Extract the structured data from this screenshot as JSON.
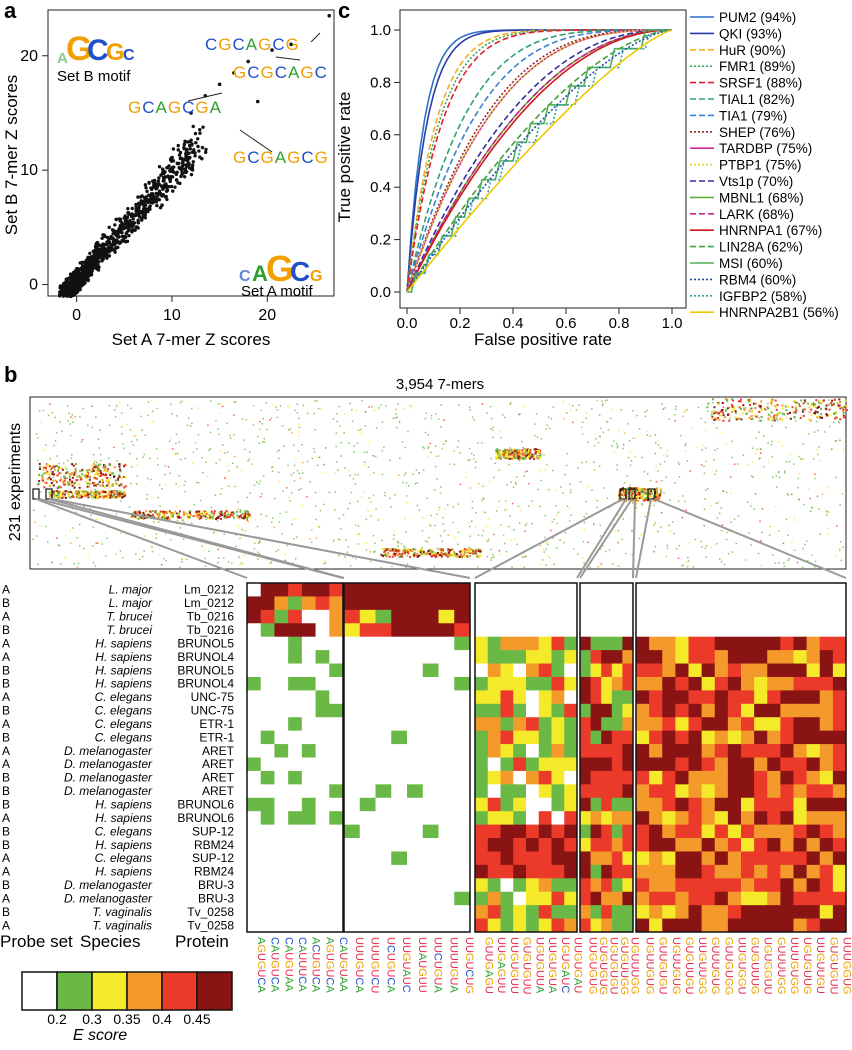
{
  "panels": {
    "a": "a",
    "b": "b",
    "c": "c"
  },
  "colors": {
    "A": "#2ca02c",
    "C": "#2050c8",
    "G": "#f0a000",
    "U": "#e8294a",
    "escore": [
      "#ffffff",
      "#6ab846",
      "#f4ea2a",
      "#f49a2a",
      "#ec3a2a",
      "#8a1414"
    ]
  },
  "panel_a": {
    "xlabel": "Set A 7-mer Z scores",
    "ylabel": "Set B 7-mer Z scores",
    "xticks": [
      "0",
      "10",
      "20"
    ],
    "yticks": [
      "0",
      "10",
      "20"
    ],
    "kmer_labels": [
      "CGCAGCG",
      "GCGCAGC",
      "GCAGCGA",
      "GCGAGCG"
    ],
    "motif_labels": [
      "Set B motif",
      "Set A motif"
    ],
    "logo_icons": [
      "set-b-motif-logo",
      "set-a-motif-logo"
    ]
  },
  "panel_b": {
    "top_title": "3,954 7-mers",
    "ylabel": "231 experiments",
    "col_headers": [
      "Probe set",
      "Species",
      "Protein"
    ],
    "rows": [
      [
        "A",
        "L. major",
        "Lm_0212"
      ],
      [
        "B",
        "L. major",
        "Lm_0212"
      ],
      [
        "A",
        "T. brucei",
        "Tb_0216"
      ],
      [
        "B",
        "T. brucei",
        "Tb_0216"
      ],
      [
        "A",
        "H. sapiens",
        "BRUNOL5"
      ],
      [
        "A",
        "H. sapiens",
        "BRUNOL4"
      ],
      [
        "B",
        "H. sapiens",
        "BRUNOL5"
      ],
      [
        "B",
        "H. sapiens",
        "BRUNOL4"
      ],
      [
        "A",
        "C. elegans",
        "UNC-75"
      ],
      [
        "B",
        "C. elegans",
        "UNC-75"
      ],
      [
        "A",
        "C. elegans",
        "ETR-1"
      ],
      [
        "B",
        "C. elegans",
        "ETR-1"
      ],
      [
        "A",
        "D. melanogaster",
        "ARET"
      ],
      [
        "A",
        "D. melanogaster",
        "ARET"
      ],
      [
        "B",
        "D. melanogaster",
        "ARET"
      ],
      [
        "B",
        "D. melanogaster",
        "ARET"
      ],
      [
        "B",
        "H. sapiens",
        "BRUNOL6"
      ],
      [
        "A",
        "H. sapiens",
        "BRUNOL6"
      ],
      [
        "B",
        "C. elegans",
        "SUP-12"
      ],
      [
        "B",
        "H. sapiens",
        "RBM24"
      ],
      [
        "A",
        "C. elegans",
        "SUP-12"
      ],
      [
        "A",
        "H. sapiens",
        "RBM24"
      ],
      [
        "B",
        "D. melanogaster",
        "BRU-3"
      ],
      [
        "A",
        "D. melanogaster",
        "BRU-3"
      ],
      [
        "B",
        "T. vaginalis",
        "Tv_0258"
      ],
      [
        "A",
        "T. vaginalis",
        "Tv_0258"
      ]
    ],
    "legend_ticks": [
      "0.2",
      "0.3",
      "0.35",
      "0.4",
      "0.45"
    ],
    "legend_title": "E score",
    "kmers": [
      [
        "AGUGUCA",
        "CAUGUCA",
        "CAUGUAA",
        "CAUUUCA",
        "ACUGUCA",
        "AGUGUCA",
        "CAUGUAA"
      ],
      [
        "UUUGUCA",
        "UUUGUCU",
        "UCUGUCA",
        "UUGUAUC",
        "UUAUGUU",
        "UUCUGUA",
        "UUUUGUA",
        "UUGUCUG"
      ],
      [
        "GUUGAGU",
        "UUGAGUU",
        "UUGUGUU",
        "GUGUGUU",
        "UGUGUUA",
        "UUGUGUA",
        "UGUGAUC",
        "UUGUGAU"
      ],
      [
        "UUGUGUG",
        "GUGUGUG",
        "UGUGUGU",
        "GUGUUGG",
        "UGUUUGG"
      ],
      [
        "UGUUGUG",
        "GUUGUGU",
        "UGUUGUG",
        "GUGUUGU",
        "UUGUUGG",
        "GUUUGUG",
        "GUUGUGG",
        "UUGUGGU",
        "GUGUUUG",
        "UGUGGUU",
        "GUUUUGG",
        "UUUGUGG",
        "UGUGUUG",
        "UUGUUGU",
        "GUGUGUU",
        "UUUGGUG"
      ]
    ]
  },
  "chart_data": {
    "type": "line",
    "title": "",
    "xlabel": "False positive rate",
    "ylabel": "True positive rate",
    "xlim": [
      0,
      1
    ],
    "ylim": [
      0,
      1
    ],
    "xticks": [
      "0.0",
      "0.2",
      "0.4",
      "0.6",
      "0.8",
      "1.0"
    ],
    "yticks": [
      "0.0",
      "0.2",
      "0.4",
      "0.6",
      "0.8",
      "1.0"
    ],
    "legend_position": "right",
    "series": [
      {
        "name": "PUM2 (94%)",
        "color": "#2a72c8",
        "dash": "solid",
        "auc": 0.94
      },
      {
        "name": "QKI (93%)",
        "color": "#2a3ca8",
        "dash": "solid",
        "auc": 0.93
      },
      {
        "name": "HuR (90%)",
        "color": "#f0b020",
        "dash": "dash",
        "auc": 0.9
      },
      {
        "name": "FMR1 (89%)",
        "color": "#3aa850",
        "dash": "dot",
        "auc": 0.89
      },
      {
        "name": "SRSF1 (88%)",
        "color": "#e02030",
        "dash": "dash",
        "auc": 0.88
      },
      {
        "name": "TIAL1 (82%)",
        "color": "#30a070",
        "dash": "dash",
        "auc": 0.82
      },
      {
        "name": "TIA1 (79%)",
        "color": "#3a80d0",
        "dash": "dash",
        "auc": 0.79
      },
      {
        "name": "SHEP (76%)",
        "color": "#8a2a2a",
        "dash": "dot",
        "auc": 0.76
      },
      {
        "name": "TARDBP (75%)",
        "color": "#d02890",
        "dash": "solid",
        "auc": 0.75
      },
      {
        "name": "PTBP1 (75%)",
        "color": "#e0d020",
        "dash": "dot",
        "auc": 0.75
      },
      {
        "name": "Vts1p (70%)",
        "color": "#3030a0",
        "dash": "dash",
        "auc": 0.7
      },
      {
        "name": "MBNL1 (68%)",
        "color": "#60b030",
        "dash": "solid",
        "auc": 0.68
      },
      {
        "name": "LARK (68%)",
        "color": "#c02090",
        "dash": "dash",
        "auc": 0.68
      },
      {
        "name": "HNRNPA1 (67%)",
        "color": "#d01818",
        "dash": "solid",
        "auc": 0.67
      },
      {
        "name": "LIN28A (62%)",
        "color": "#40a040",
        "dash": "dash",
        "auc": 0.62
      },
      {
        "name": "MSI (60%)",
        "color": "#50b050",
        "dash": "solid",
        "auc": 0.6
      },
      {
        "name": "RBM4 (60%)",
        "color": "#2050b0",
        "dash": "dot",
        "auc": 0.6
      },
      {
        "name": "IGFBP2 (58%)",
        "color": "#30a0a0",
        "dash": "dot",
        "auc": 0.58
      },
      {
        "name": "HNRNPA2B1 (56%)",
        "color": "#f0c800",
        "dash": "solid",
        "auc": 0.56
      }
    ]
  }
}
